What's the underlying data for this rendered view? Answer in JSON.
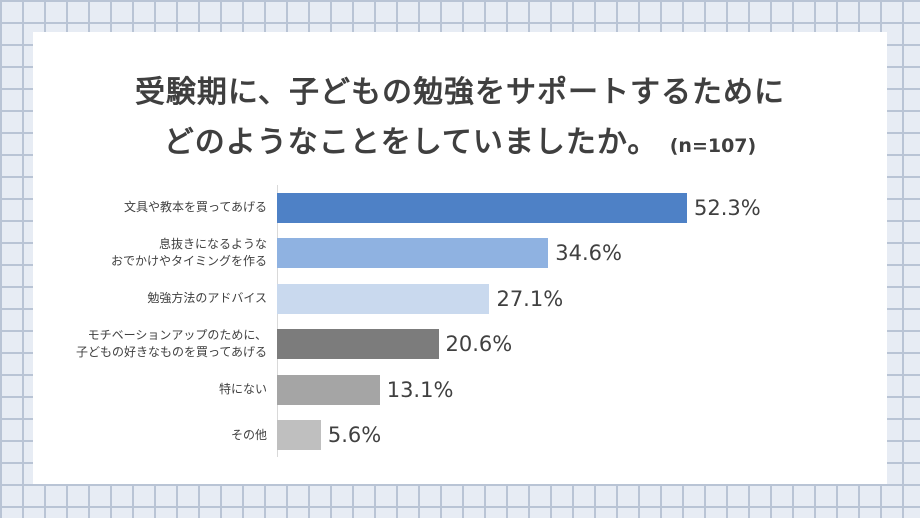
{
  "page": {
    "background": {
      "cell_fill": "#e7ecf4",
      "grid_line_color": "#b9c4d5"
    },
    "card_background": "#ffffff"
  },
  "title": {
    "line1": "受験期に、子どもの勉強をサポートするために",
    "line2": "どのようなことをしていましたか。",
    "sample_size": "(n=107)",
    "color": "#3f3f3f"
  },
  "chart_data": {
    "type": "bar",
    "orientation": "horizontal",
    "title": "受験期に、子どもの勉強をサポートするために どのようなことをしていましたか。",
    "sample_size": "n=107",
    "categories": [
      "文具や教本を買ってあげる",
      "息抜きになるような おでかけやタイミングを作る",
      "勉強方法のアドバイス",
      "モチベーションアップのために、子どもの好きなものを買ってあげる",
      "特にない",
      "その他"
    ],
    "categories_lines": [
      [
        "文具や教本を買ってあげる"
      ],
      [
        "息抜きになるような",
        "おでかけやタイミングを作る"
      ],
      [
        "勉強方法のアドバイス"
      ],
      [
        "モチベーションアップのために、",
        "子どもの好きなものを買ってあげる"
      ],
      [
        "特にない"
      ],
      [
        "その他"
      ]
    ],
    "values": [
      52.3,
      34.6,
      27.1,
      20.6,
      13.1,
      5.6
    ],
    "value_labels": [
      "52.3%",
      "34.6%",
      "27.1%",
      "20.6%",
      "13.1%",
      "5.6%"
    ],
    "bar_colors": [
      "#4e81c6",
      "#8fb2e1",
      "#c9d9ee",
      "#7c7c7c",
      "#a5a5a5",
      "#bfbfbf"
    ],
    "xlim": [
      0,
      60
    ],
    "grid": false,
    "legend": false,
    "axis_line_color": "#d9d9d9"
  }
}
